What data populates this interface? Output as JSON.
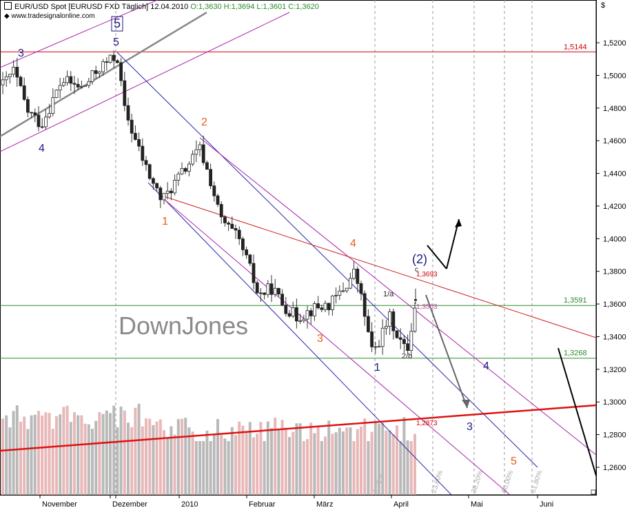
{
  "header": {
    "title": "EUR/USD Spot [EURUSD FXD  Täglich] 12.04.2010",
    "ohlc": "O:1,3630 H:1,3694 L:1,3601 C:1,3620",
    "source": "www.tradesignalonline.com",
    "currency": "$"
  },
  "watermark": "DownJones",
  "chart_data": {
    "type": "candlestick",
    "instrument": "EUR/USD",
    "date": "12.04.2010",
    "open": 1.363,
    "high": 1.3694,
    "low": 1.3601,
    "close": 1.362,
    "ylim": [
      1.245,
      1.53
    ],
    "y_ticks": [
      "1,2600",
      "1,2800",
      "1,3000",
      "1,3200",
      "1,3400",
      "1,3600",
      "1,3800",
      "1,4000",
      "1,4200",
      "1,4400",
      "1,4600",
      "1,4800",
      "1,5000",
      "1,5200"
    ],
    "x_labels": [
      "November",
      "Dezember",
      "2010",
      "Februar",
      "März",
      "April",
      "Mai",
      "Juni"
    ],
    "price_levels": [
      {
        "label": "1,5144",
        "value": 1.5144,
        "color": "#cc0000"
      },
      {
        "label": "1,3591",
        "value": 1.3591,
        "color": "#2a8a2a"
      },
      {
        "label": "1,3268",
        "value": 1.3268,
        "color": "#2a8a2a"
      }
    ],
    "price_labels": [
      {
        "label": "1,3693",
        "color": "#cc0000"
      },
      {
        "label": "1,3503",
        "color": "#cc44aa"
      },
      {
        "label": "1,2873",
        "color": "#cc0000"
      }
    ],
    "fib_labels": [
      "0,00%",
      "23,60%",
      "38,20%",
      "50,00%",
      "61,80%"
    ],
    "wave_labels": [
      {
        "text": "3",
        "color": "#1a1a80"
      },
      {
        "text": "4",
        "color": "#1a1a80"
      },
      {
        "text": "5",
        "color": "#1a1a80"
      },
      {
        "text": "5",
        "color": "#1a1a80",
        "boxed": true
      },
      {
        "text": "1",
        "color": "#e85a1a"
      },
      {
        "text": "2",
        "color": "#e85a1a"
      },
      {
        "text": "3",
        "color": "#e85a1a"
      },
      {
        "text": "4",
        "color": "#e85a1a"
      },
      {
        "text": "5",
        "color": "#e85a1a"
      },
      {
        "text": "1",
        "color": "#1a1a80"
      },
      {
        "text": "2/b",
        "color": "#222222"
      },
      {
        "text": "1/a",
        "color": "#222222"
      },
      {
        "text": "(2)",
        "color": "#1a1a80"
      },
      {
        "text": "c",
        "color": "#222222"
      },
      {
        "text": "3",
        "color": "#1a1a80"
      },
      {
        "text": "4",
        "color": "#1a1a80"
      }
    ]
  }
}
